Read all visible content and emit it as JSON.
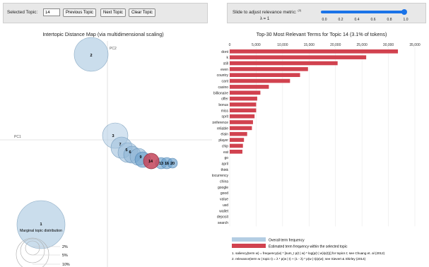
{
  "topic_controls": {
    "selected_label": "Selected Topic:",
    "selected_value": "14",
    "prev_label": "Previous Topic",
    "next_label": "Next Topic",
    "clear_label": "Clear Topic"
  },
  "relevance": {
    "label": "Slide to adjust relevance metric:",
    "footnote_ref": "(2)",
    "lambda_text": "λ = 1",
    "value": 1.0,
    "ticks": [
      "0.0",
      "0.2",
      "0.4",
      "0.6",
      "0.8",
      "1.0"
    ],
    "accent": "#1a73e8"
  },
  "intertopic_map": {
    "title": "Intertopic Distance Map (via multidimensional scaling)",
    "pc1_label": "PC1",
    "pc2_label": "PC2",
    "marginal_label": "Marginal topic distribution",
    "size_legend": [
      "2%",
      "5%",
      "10%"
    ],
    "topic_labels": [
      "1",
      "2",
      "3",
      "7",
      "5",
      "6",
      "9",
      "14",
      "13",
      "16",
      "20"
    ],
    "circle_color": "#b5cfe3",
    "selected_color": "#c4455a"
  },
  "chart_data": {
    "type": "bar",
    "title": "Top-30 Most Relevant Terms for Topic 14 (3.1% of tokens)",
    "categories": [
      "dont",
      "k",
      "still",
      "even",
      "country",
      "cant",
      "casino",
      "billionaire",
      "offer",
      "bonus",
      "miss",
      "sprit",
      "conference",
      "reliable",
      "elain",
      "player",
      "chip",
      "eat",
      "go",
      "april",
      "think",
      "cryptocurrency",
      "china",
      "google",
      "good",
      "value",
      "usd",
      "wallet",
      "deposit",
      "search"
    ],
    "values": [
      31800,
      25800,
      20400,
      14800,
      13300,
      11400,
      7400,
      5800,
      5200,
      5000,
      5000,
      4700,
      4400,
      4200,
      3300,
      2700,
      2500,
      2400,
      0,
      0,
      0,
      0,
      0,
      0,
      0,
      0,
      0,
      0,
      0,
      0
    ],
    "xticks": [
      "0",
      "5,000",
      "10,000",
      "15,000",
      "20,000",
      "25,000",
      "30,000",
      "35,000"
    ],
    "xlim": [
      0,
      35000
    ],
    "legend": [
      "Overall term frequency",
      "Estimated term frequency within the selected topic"
    ],
    "bar_color": "#d1424f",
    "overall_color": "#b3cde3",
    "footnotes": [
      "1. saliency(term w) = frequency(w) * [sum_t p(t | w) * log(p(t | w)/p(t))] for topics t; see Chuang et. al (2012)",
      "2. relevance(term w | topic t) = λ * p(w | t) + (1 - λ) * p(w | t)/p(w); see Sievert & Shirley (2014)"
    ]
  }
}
